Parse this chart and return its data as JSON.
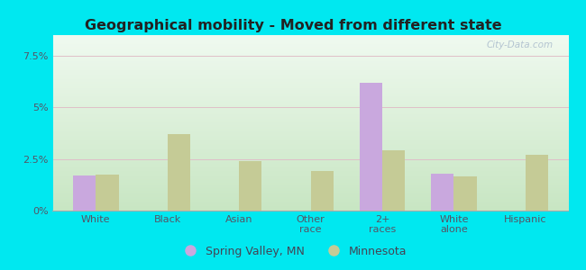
{
  "title": "Geographical mobility - Moved from different state",
  "categories": [
    "White",
    "Black",
    "Asian",
    "Other\nrace",
    "2+\nraces",
    "White\nalone",
    "Hispanic"
  ],
  "spring_valley": [
    1.7,
    0.0,
    0.0,
    0.0,
    6.2,
    1.8,
    0.0
  ],
  "minnesota": [
    1.75,
    3.7,
    2.4,
    1.9,
    2.9,
    1.65,
    2.7
  ],
  "sv_color": "#c9a8de",
  "mn_color": "#c5cb96",
  "yticks": [
    0,
    2.5,
    5.0,
    7.5
  ],
  "ytick_labels": [
    "0%",
    "2.5%",
    "5%",
    "7.5%"
  ],
  "ylim": [
    0,
    8.5
  ],
  "bg_outer": "#00e8f0",
  "bg_top": "#f0faf0",
  "bg_bottom": "#c8eac0",
  "legend_sv": "Spring Valley, MN",
  "legend_mn": "Minnesota",
  "bar_width": 0.32,
  "watermark": "City-Data.com"
}
